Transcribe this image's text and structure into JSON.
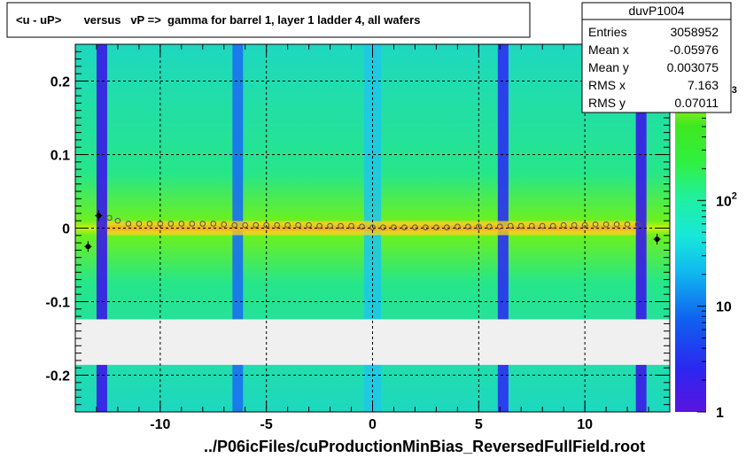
{
  "title": "<u - uP>       versus   vP =>  gamma for barrel 1, layer 1 ladder 4, all wafers",
  "stats": {
    "name": "duvP1004",
    "rows": [
      {
        "label": "Entries",
        "value": "3058952"
      },
      {
        "label": "Mean x",
        "value": "-0.05976"
      },
      {
        "label": "Mean y",
        "value": "0.003075"
      },
      {
        "label": "RMS x",
        "value": "7.163"
      },
      {
        "label": "RMS y",
        "value": "0.07011"
      }
    ]
  },
  "footer": "../P06icFiles/cuProductionMinBias_ReversedFullField.root",
  "colorbar": {
    "scale": "log",
    "range": [
      1,
      3000
    ],
    "ticks": [
      {
        "value": 1,
        "base": "1",
        "exp": ""
      },
      {
        "value": 10,
        "base": "10",
        "exp": ""
      },
      {
        "value": 100,
        "base": "10",
        "exp": "2"
      },
      {
        "value": 1000,
        "base": "10",
        "exp": "3"
      }
    ]
  },
  "chart_data": {
    "type": "heatmap",
    "title": "<u - uP>       versus   vP =>  gamma for barrel 1, layer 1 ladder 4, all wafers",
    "xlim": [
      -14,
      14
    ],
    "ylim": [
      -0.25,
      0.25
    ],
    "grid": true,
    "x_ticks": [
      {
        "value": -10,
        "label": "-10"
      },
      {
        "value": -5,
        "label": "-5"
      },
      {
        "value": 0,
        "label": "0"
      },
      {
        "value": 5,
        "label": "5"
      },
      {
        "value": 10,
        "label": "10"
      }
    ],
    "y_ticks": [
      {
        "value": 0.2,
        "label": "0.2"
      },
      {
        "value": 0.1,
        "label": "0.1"
      },
      {
        "value": 0,
        "label": "0"
      },
      {
        "value": -0.1,
        "label": "-0.1"
      },
      {
        "value": -0.2,
        "label": "-0.2"
      }
    ],
    "gap_band_y": [
      -0.186,
      -0.124
    ],
    "vertical_bands": [
      {
        "x": [
          -13.0,
          -12.5
        ],
        "color": "#3a18e8"
      },
      {
        "x": [
          -6.6,
          -6.1
        ],
        "color": "#1a70f0"
      },
      {
        "x": [
          -0.4,
          0.4
        ],
        "color": "#1ec8e6"
      },
      {
        "x": [
          5.9,
          6.4
        ],
        "color": "#2a30f0"
      },
      {
        "x": [
          12.4,
          12.9
        ],
        "color": "#3a18e8"
      }
    ],
    "ridge_y": 0.0,
    "profile_points": [
      {
        "x": -13.4,
        "y": -0.025
      },
      {
        "x": -12.9,
        "y": 0.017
      },
      {
        "x": -12.4,
        "y": 0.014
      },
      {
        "x": -12.0,
        "y": 0.01
      },
      {
        "x": -11.5,
        "y": 0.006
      },
      {
        "x": -11.0,
        "y": 0.006
      },
      {
        "x": -10.5,
        "y": 0.006
      },
      {
        "x": -10.0,
        "y": 0.006
      },
      {
        "x": -9.5,
        "y": 0.006
      },
      {
        "x": -9.0,
        "y": 0.006
      },
      {
        "x": -8.5,
        "y": 0.006
      },
      {
        "x": -8.0,
        "y": 0.006
      },
      {
        "x": -7.5,
        "y": 0.006
      },
      {
        "x": -7.0,
        "y": 0.005
      },
      {
        "x": -6.5,
        "y": 0.004
      },
      {
        "x": -6.0,
        "y": 0.004
      },
      {
        "x": -5.5,
        "y": 0.004
      },
      {
        "x": -5.0,
        "y": 0.004
      },
      {
        "x": -4.5,
        "y": 0.004
      },
      {
        "x": -4.0,
        "y": 0.004
      },
      {
        "x": -3.5,
        "y": 0.004
      },
      {
        "x": -3.0,
        "y": 0.004
      },
      {
        "x": -2.5,
        "y": 0.003
      },
      {
        "x": -2.0,
        "y": 0.003
      },
      {
        "x": -1.5,
        "y": 0.003
      },
      {
        "x": -1.0,
        "y": 0.003
      },
      {
        "x": -0.5,
        "y": 0.002
      },
      {
        "x": 0.0,
        "y": 0.001
      },
      {
        "x": 0.5,
        "y": 0.001
      },
      {
        "x": 1.0,
        "y": 0.001
      },
      {
        "x": 1.5,
        "y": 0.001
      },
      {
        "x": 2.0,
        "y": 0.001
      },
      {
        "x": 2.5,
        "y": 0.001
      },
      {
        "x": 3.0,
        "y": 0.001
      },
      {
        "x": 3.5,
        "y": 0.001
      },
      {
        "x": 4.0,
        "y": 0.002
      },
      {
        "x": 4.5,
        "y": 0.002
      },
      {
        "x": 5.0,
        "y": 0.002
      },
      {
        "x": 5.5,
        "y": 0.002
      },
      {
        "x": 6.0,
        "y": 0.002
      },
      {
        "x": 6.5,
        "y": 0.003
      },
      {
        "x": 7.0,
        "y": 0.003
      },
      {
        "x": 7.5,
        "y": 0.003
      },
      {
        "x": 8.0,
        "y": 0.003
      },
      {
        "x": 8.5,
        "y": 0.003
      },
      {
        "x": 9.0,
        "y": 0.004
      },
      {
        "x": 9.5,
        "y": 0.004
      },
      {
        "x": 10.0,
        "y": 0.004
      },
      {
        "x": 10.5,
        "y": 0.005
      },
      {
        "x": 11.0,
        "y": 0.005
      },
      {
        "x": 11.5,
        "y": 0.005
      },
      {
        "x": 12.0,
        "y": 0.005
      },
      {
        "x": 12.5,
        "y": 0.005
      },
      {
        "x": 13.4,
        "y": -0.015
      }
    ],
    "outlier_points": [
      {
        "x": -13.4,
        "y": -0.025
      },
      {
        "x": -12.9,
        "y": 0.017
      },
      {
        "x": 13.4,
        "y": -0.015
      }
    ]
  }
}
